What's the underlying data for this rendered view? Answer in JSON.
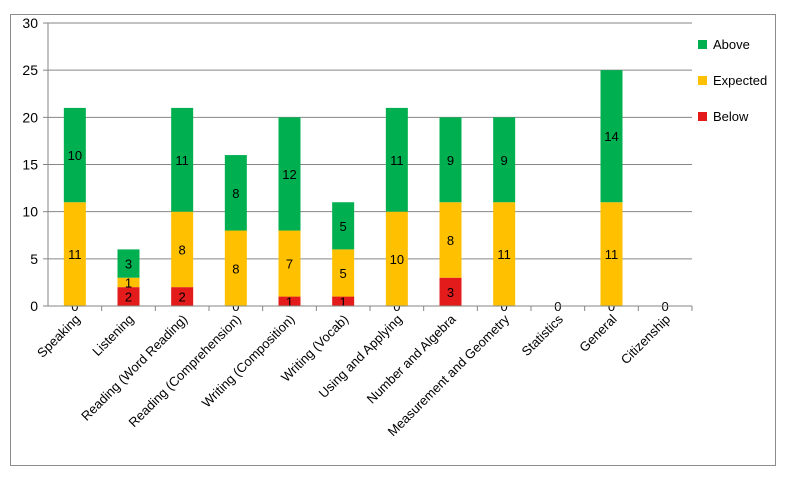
{
  "chart_data": {
    "type": "bar",
    "stacked": true,
    "categories": [
      "Speaking",
      "Listening",
      "Reading (Word Reading)",
      "Reading (Comprehension)",
      "Writing (Composition)",
      "Writing (Vocab)",
      "Using and Applying",
      "Number and Algebra",
      "Measurement and Geometry",
      "Statistics",
      "General",
      "Citizenship"
    ],
    "series": [
      {
        "name": "Below",
        "color": "#e31b1b",
        "values": [
          0,
          2,
          2,
          0,
          1,
          1,
          0,
          3,
          0,
          0,
          0,
          0
        ]
      },
      {
        "name": "Expected",
        "color": "#ffc000",
        "values": [
          11,
          1,
          8,
          8,
          7,
          5,
          10,
          8,
          11,
          0,
          11,
          0
        ]
      },
      {
        "name": "Above",
        "color": "#00b050",
        "values": [
          10,
          3,
          11,
          8,
          12,
          5,
          11,
          9,
          9,
          0,
          14,
          0
        ]
      }
    ],
    "ylim": [
      0,
      30
    ],
    "yticks": [
      0,
      5,
      10,
      15,
      20,
      25,
      30
    ],
    "grid": true,
    "legend": "right",
    "legend_order": [
      "Above",
      "Expected",
      "Below"
    ],
    "data_labels": true
  }
}
